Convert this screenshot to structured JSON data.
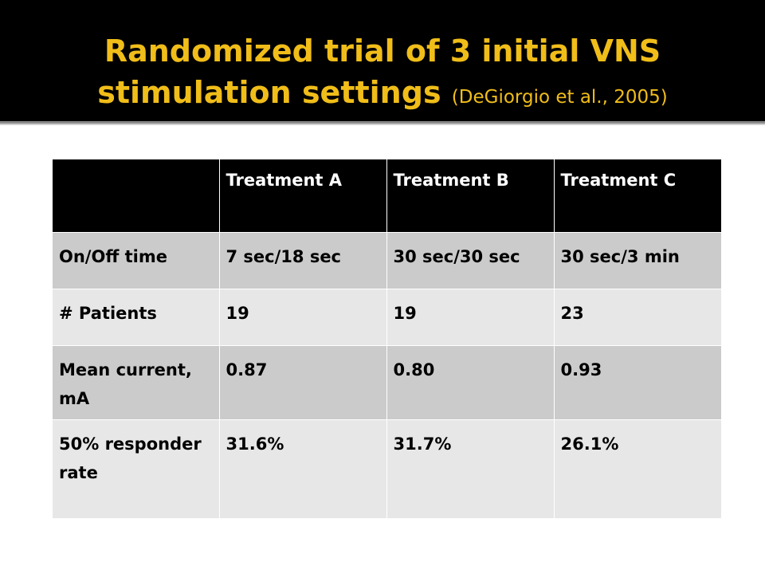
{
  "title": {
    "line1": "Randomized trial of 3 initial VNS",
    "line2_main": "stimulation settings",
    "line2_citation": "(DeGiorgio et al., 2005)"
  },
  "table": {
    "headers": [
      "",
      "Treatment A",
      "Treatment B",
      "Treatment C"
    ],
    "rows": [
      {
        "label": "On/Off time",
        "values": [
          "7 sec/18 sec",
          "30 sec/30 sec",
          "30 sec/3 min"
        ]
      },
      {
        "label": "# Patients",
        "values": [
          "19",
          "19",
          "23"
        ]
      },
      {
        "label": "Mean current, mA",
        "values": [
          "0.87",
          "0.80",
          "0.93"
        ]
      },
      {
        "label": "50% responder rate",
        "values": [
          "31.6%",
          "31.7%",
          "26.1%"
        ]
      }
    ]
  },
  "colors": {
    "title_background": "#000000",
    "title_text": "#f0bd19",
    "header_background": "#000000",
    "header_text": "#ffffff",
    "row_dark": "#cbcbcb",
    "row_light": "#e7e7e7"
  }
}
